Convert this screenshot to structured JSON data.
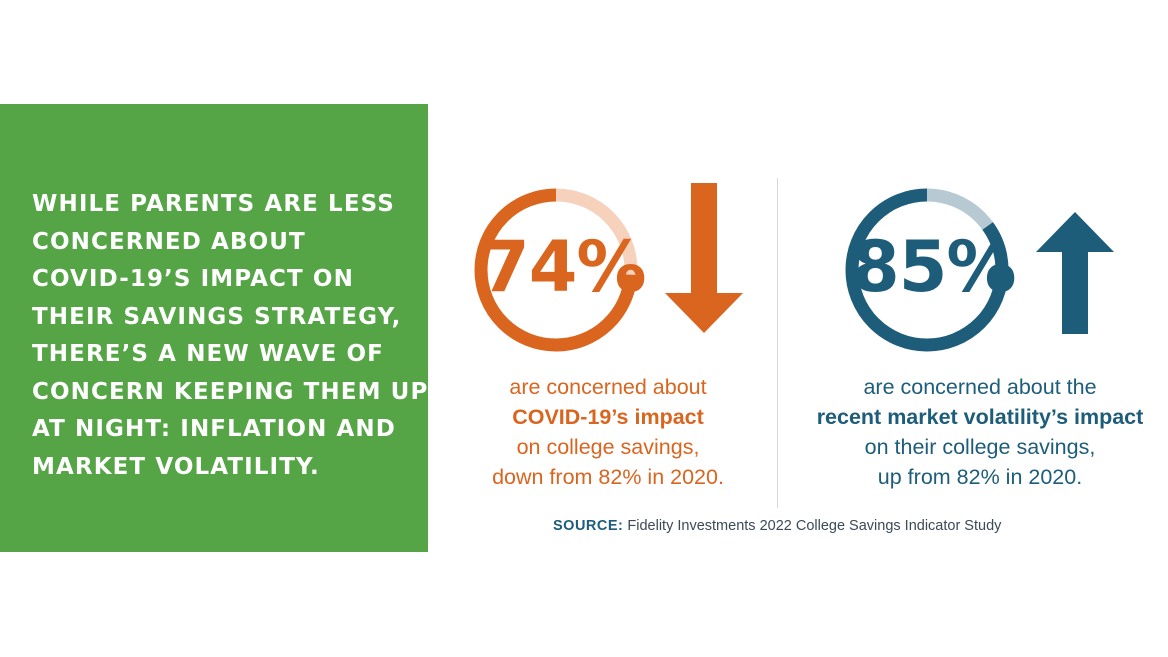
{
  "headline": {
    "lines": [
      "WHILE PARENTS ARE LESS",
      "CONCERNED ABOUT",
      "COVID-19’S IMPACT ON",
      "THEIR SAVINGS STRATEGY,",
      "THERE’S A NEW WAVE OF",
      "CONCERN KEEPING THEM UP",
      "AT NIGHT: INFLATION AND",
      "MARKET VOLATILITY."
    ]
  },
  "stats": [
    {
      "percent_label": "74%",
      "percent": 74,
      "trend": "down",
      "caption_line1": "are concerned about",
      "caption_emphasis": "COVID-19’s impact",
      "caption_line3": "on college savings,",
      "caption_line4": "down from 82% in 2020."
    },
    {
      "percent_label": "85%",
      "percent": 85,
      "trend": "up",
      "caption_line1": "are concerned about the",
      "caption_emphasis": "recent market volatility’s impact",
      "caption_line3": "on their college savings,",
      "caption_line4": "up from 82% in 2020."
    }
  ],
  "source": {
    "label": "SOURCE:",
    "text": "Fidelity Investments 2022 College Savings Indicator Study"
  },
  "colors": {
    "green": "#55a546",
    "orange": "#d9651f",
    "orange_light": "#f6d2bd",
    "blue": "#1d5d7a",
    "blue_light": "#b7cad4"
  }
}
